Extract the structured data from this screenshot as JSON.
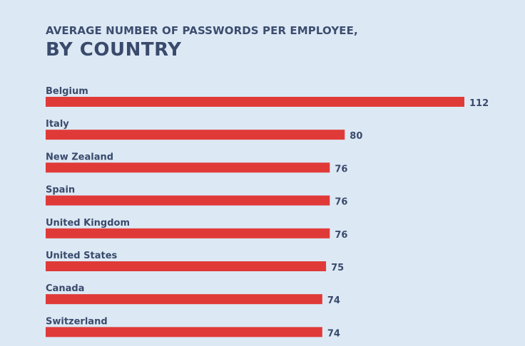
{
  "header": {
    "subtitle": "AVERAGE NUMBER OF PASSWORDS PER EMPLOYEE,",
    "title": "BY COUNTRY"
  },
  "colors": {
    "background": "#dce9f5",
    "bar": "#e03a38",
    "text": "#3a4a6b"
  },
  "chart_data": {
    "type": "bar",
    "orientation": "horizontal",
    "title": "BY COUNTRY",
    "subtitle": "AVERAGE NUMBER OF PASSWORDS PER EMPLOYEE,",
    "categories": [
      "Belgium",
      "Italy",
      "New Zealand",
      "Spain",
      "United Kingdom",
      "United States",
      "Canada",
      "Switzerland"
    ],
    "values": [
      112,
      80,
      76,
      76,
      76,
      75,
      74,
      74
    ],
    "grid": false,
    "legend": "none"
  }
}
